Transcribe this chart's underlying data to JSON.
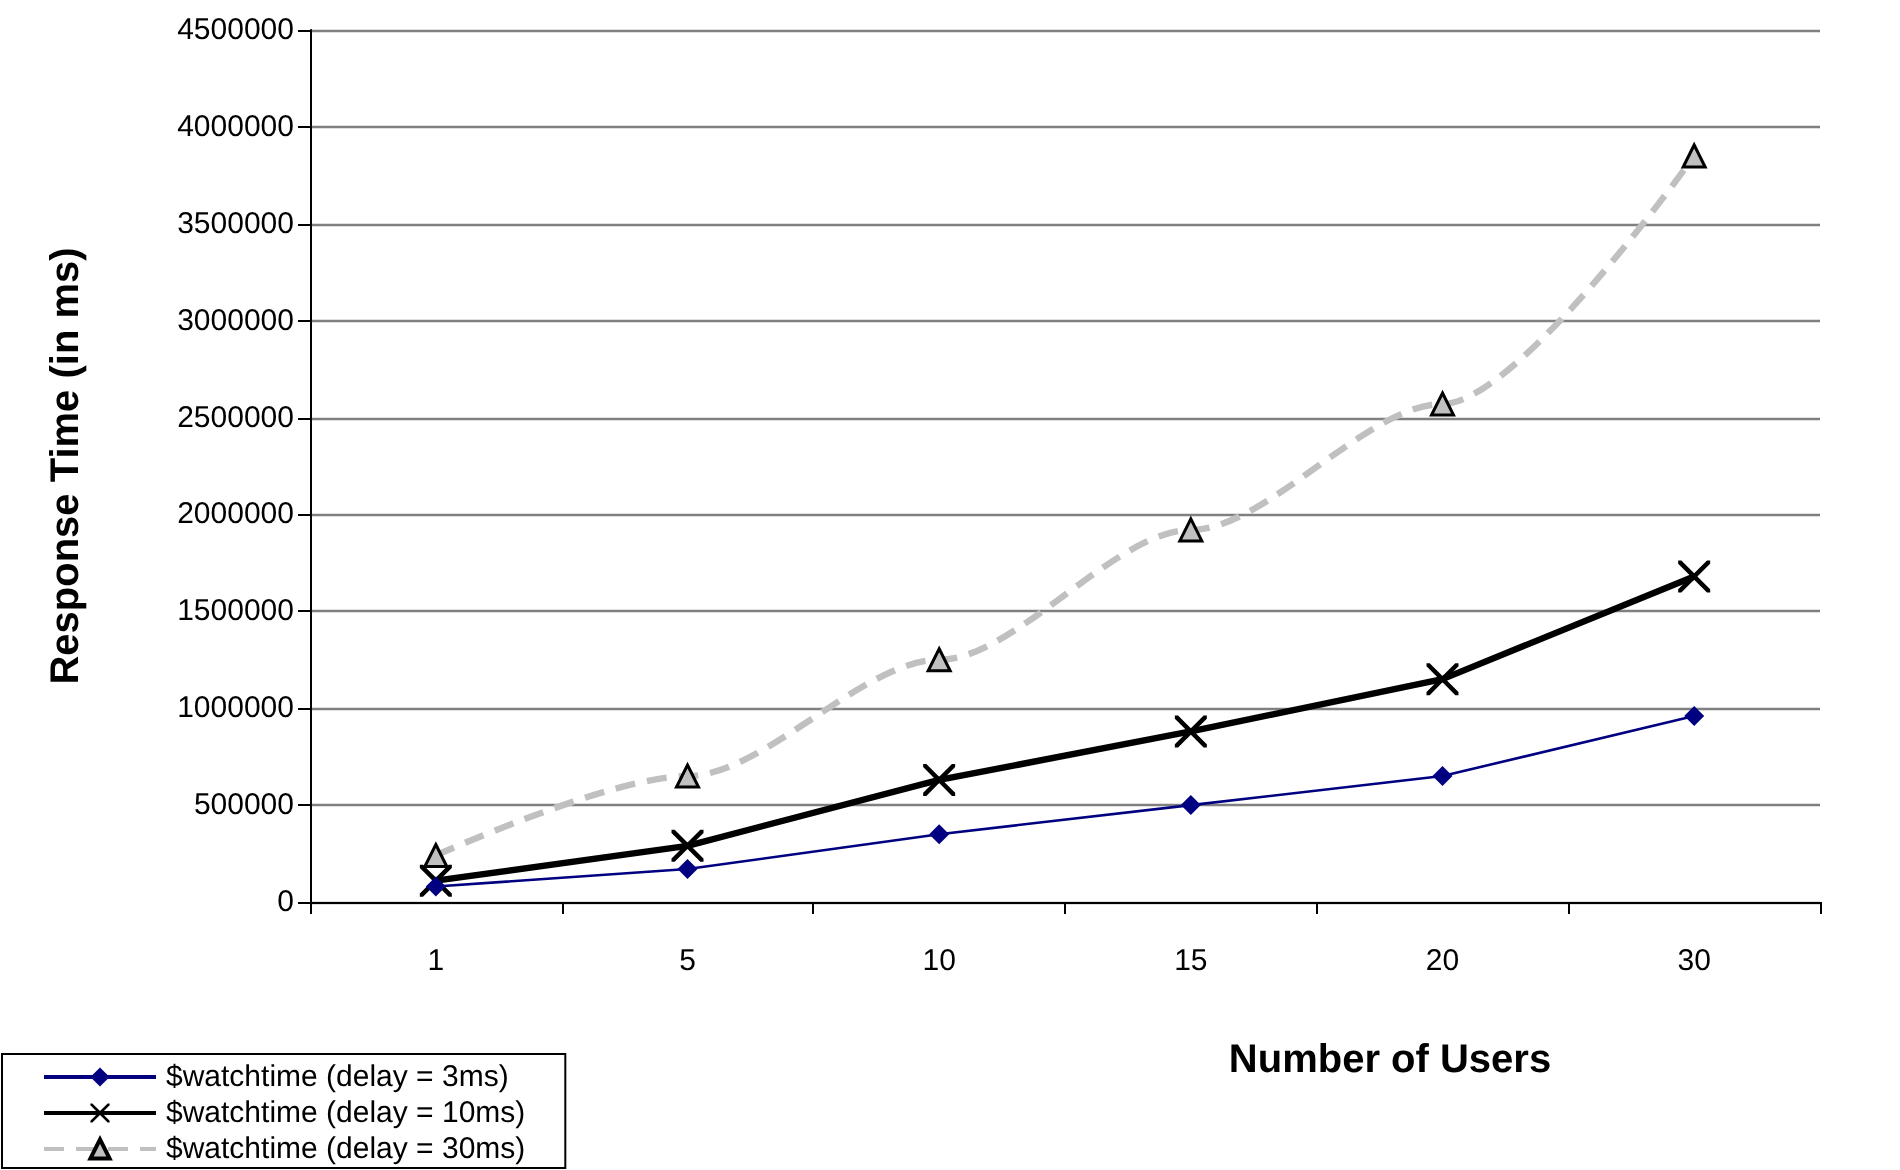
{
  "chart_data": {
    "type": "line",
    "xlabel": "Number of Users",
    "ylabel": "Response Time (in ms)",
    "categories": [
      "1",
      "5",
      "10",
      "15",
      "20",
      "30"
    ],
    "series": [
      {
        "name": "$watchtime (delay = 3ms)",
        "color": "#000080",
        "marker": "diamond",
        "line_style": "solid",
        "values": [
          80000,
          170000,
          350000,
          500000,
          650000,
          960000
        ]
      },
      {
        "name": "$watchtime (delay = 10ms)",
        "color": "#000000",
        "marker": "cross",
        "line_style": "solid",
        "values": [
          110000,
          290000,
          630000,
          880000,
          1150000,
          1680000
        ]
      },
      {
        "name": "$watchtime (delay = 30ms)",
        "color": "#c0c0c0",
        "marker": "triangle",
        "line_style": "dashed",
        "values": [
          240000,
          650000,
          1250000,
          1920000,
          2570000,
          3850000
        ]
      }
    ],
    "ylim": [
      0,
      4500000
    ],
    "yticks": [
      0,
      500000,
      1000000,
      1500000,
      2000000,
      2500000,
      3000000,
      3500000,
      4000000,
      4500000
    ],
    "grid": "y",
    "legend": "bottom left"
  }
}
